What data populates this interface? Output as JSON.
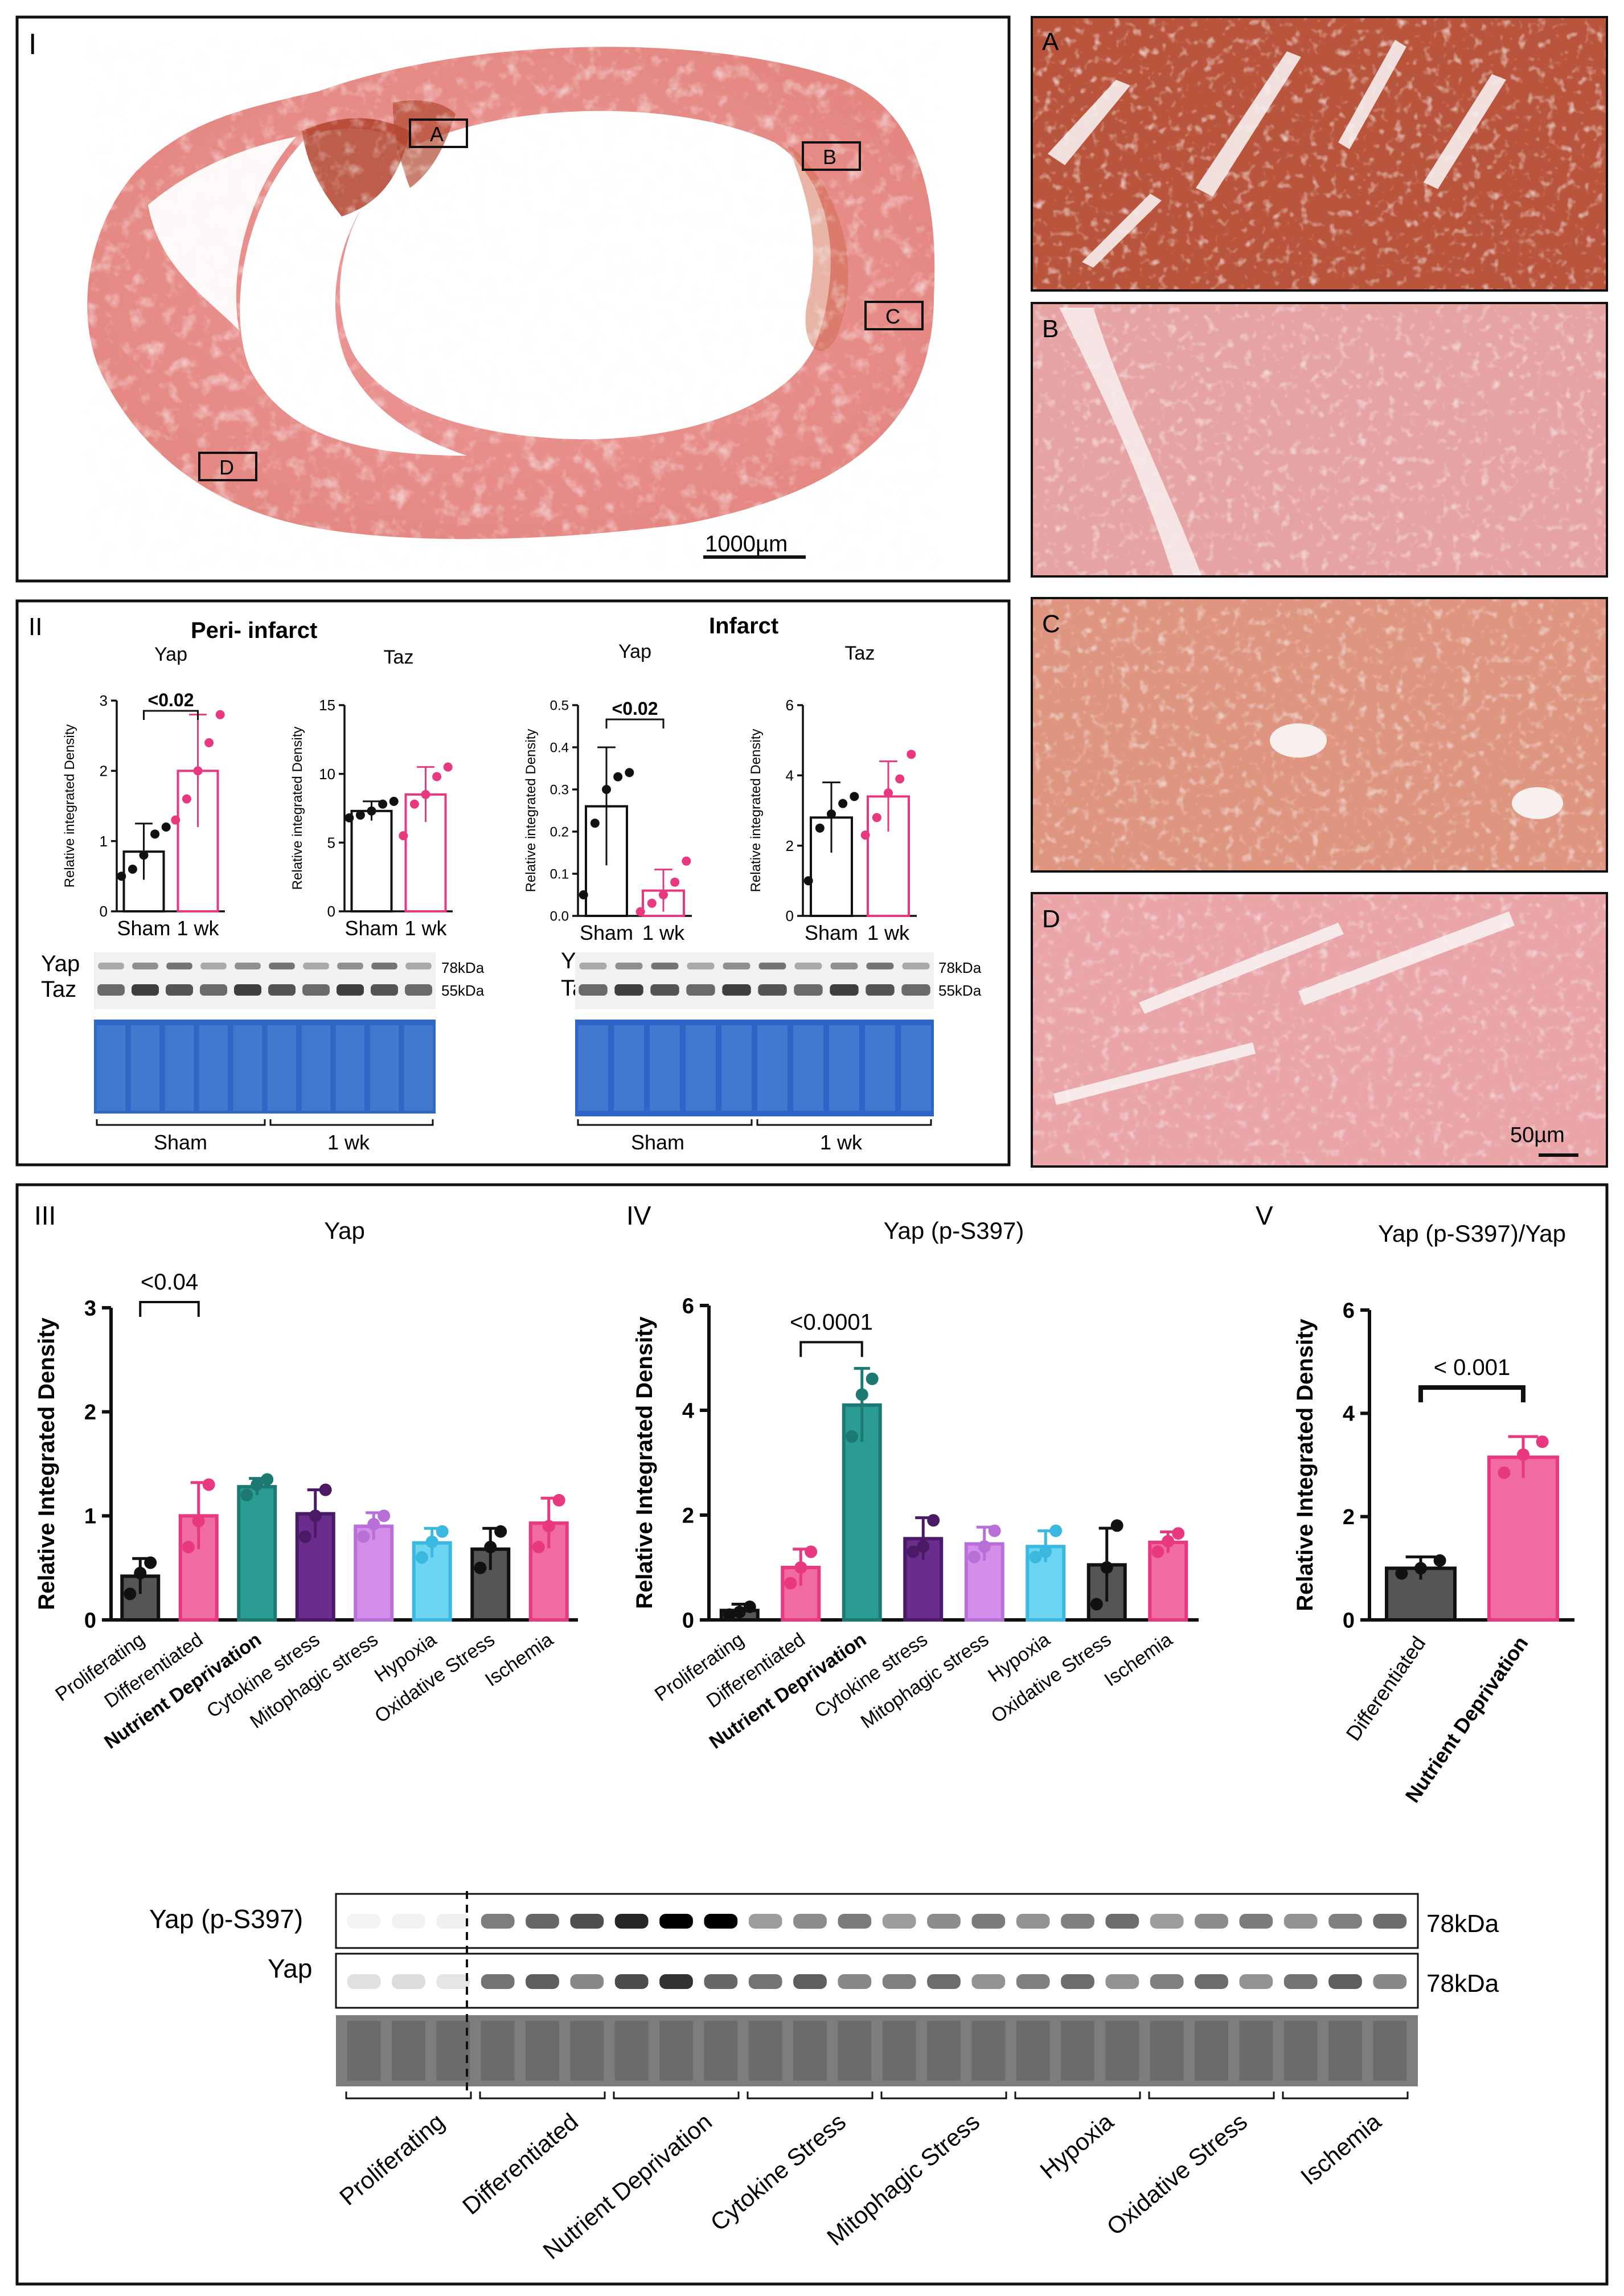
{
  "panel_I": {
    "label": "I",
    "scale_bar": "1000µm",
    "boxes": [
      "A",
      "B",
      "C",
      "D"
    ]
  },
  "micrographs": {
    "labels": [
      "A",
      "B",
      "C",
      "D"
    ],
    "scale_bar": "50µm"
  },
  "panel_II": {
    "label": "II",
    "peri_title": "Peri- infarct",
    "infarct_title": "Infarct",
    "blot_yap": "Yap",
    "blot_taz": "Taz",
    "kda_78": "78kDa",
    "kda_55": "55kDa",
    "group_sham": "Sham",
    "group_1wk": "1 wk"
  },
  "panel_III_label": "III",
  "panel_IV_label": "IV",
  "panel_V_label": "V",
  "blot_III": {
    "row1": "Yap (p-S397)",
    "row2": "Yap",
    "kda1": "78kDa",
    "kda2": "78kDa",
    "groups": [
      "Proliferating",
      "Differentiated",
      "Nutrient Deprivation",
      "Cytokine Stress",
      "Mitophagic Stress",
      "Hypoxia",
      "Oxidative Stress",
      "Ischemia"
    ],
    "p_intensities": [
      0.05,
      0.6,
      1.0,
      0.45,
      0.45,
      0.5,
      0.45,
      0.5
    ],
    "y_intensities": [
      0.12,
      0.55,
      0.7,
      0.55,
      0.5,
      0.5,
      0.5,
      0.55
    ]
  },
  "chart_data": [
    {
      "id": "IIa",
      "type": "bar",
      "panel": "II",
      "title": "Yap",
      "ylabel": "Relative integrated Density",
      "categories": [
        "Sham",
        "1 wk"
      ],
      "values": [
        0.85,
        2.0
      ],
      "errors": [
        0.4,
        0.8
      ],
      "ylim": [
        0,
        3
      ],
      "yticks": [
        "0",
        "1",
        "2",
        "3"
      ],
      "points": [
        [
          0.5,
          0.6,
          0.8,
          1.1,
          1.2
        ],
        [
          1.3,
          1.6,
          2.0,
          2.4,
          2.8
        ]
      ],
      "colors": [
        "#111111",
        "#e8387f"
      ],
      "sig": "<0.02"
    },
    {
      "id": "IIb",
      "type": "bar",
      "panel": "II",
      "title": "Taz",
      "ylabel": "Relative integrated Density",
      "categories": [
        "Sham",
        "1 wk"
      ],
      "values": [
        7.3,
        8.5
      ],
      "errors": [
        0.7,
        2.0
      ],
      "ylim": [
        0,
        15
      ],
      "yticks": [
        "0",
        "5",
        "10",
        "15"
      ],
      "points": [
        [
          6.8,
          7.0,
          7.3,
          7.8,
          8.0
        ],
        [
          5.5,
          7.8,
          8.5,
          9.8,
          10.5
        ]
      ],
      "colors": [
        "#111111",
        "#e8387f"
      ]
    },
    {
      "id": "IIc",
      "type": "bar",
      "panel": "II",
      "title": "Yap",
      "ylabel": "Relative integrated Density",
      "categories": [
        "Sham",
        "1 wk"
      ],
      "values": [
        0.26,
        0.06
      ],
      "errors": [
        0.14,
        0.05
      ],
      "ylim": [
        0,
        0.5
      ],
      "yticks": [
        "0.0",
        "0.1",
        "0.2",
        "0.3",
        "0.4",
        "0.5"
      ],
      "points": [
        [
          0.05,
          0.22,
          0.3,
          0.33,
          0.34
        ],
        [
          0.01,
          0.03,
          0.05,
          0.08,
          0.13
        ]
      ],
      "colors": [
        "#111111",
        "#e8387f"
      ],
      "sig": "<0.02"
    },
    {
      "id": "IId",
      "type": "bar",
      "panel": "II",
      "title": "Taz",
      "ylabel": "Relative integrated Density",
      "categories": [
        "Sham",
        "1 wk"
      ],
      "values": [
        2.8,
        3.4
      ],
      "errors": [
        1.0,
        1.0
      ],
      "ylim": [
        0,
        6
      ],
      "yticks": [
        "0",
        "2",
        "4",
        "6"
      ],
      "points": [
        [
          1.0,
          2.5,
          2.9,
          3.2,
          3.4
        ],
        [
          2.3,
          2.8,
          3.5,
          3.9,
          4.6
        ]
      ],
      "colors": [
        "#111111",
        "#e8387f"
      ]
    },
    {
      "id": "III",
      "type": "bar",
      "panel": "III",
      "title": "Yap",
      "ylabel": "Relative Integrated Density",
      "categories": [
        "Proliferating",
        "Differentiated",
        "Nutrient Deprivation",
        "Cytokine stress",
        "Mitophagic stress",
        "Hypoxia",
        "Oxidative Stress",
        "Ischemia"
      ],
      "values": [
        0.42,
        1.0,
        1.28,
        1.02,
        0.9,
        0.74,
        0.68,
        0.93
      ],
      "errors": [
        0.17,
        0.32,
        0.08,
        0.23,
        0.13,
        0.14,
        0.2,
        0.24
      ],
      "ylim": [
        0,
        3
      ],
      "yticks": [
        "0",
        "1",
        "2",
        "3"
      ],
      "points": [
        [
          0.25,
          0.45,
          0.55
        ],
        [
          0.7,
          0.95,
          1.3
        ],
        [
          1.2,
          1.3,
          1.35
        ],
        [
          0.8,
          1.0,
          1.25
        ],
        [
          0.8,
          0.92,
          1.0
        ],
        [
          0.6,
          0.75,
          0.85
        ],
        [
          0.5,
          0.7,
          0.85
        ],
        [
          0.7,
          0.9,
          1.15
        ]
      ],
      "colors": [
        "#555555",
        "#f06ba2",
        "#2b9c93",
        "#6a2d8c",
        "#d28ee8",
        "#6cd5f2",
        "#555555",
        "#f06ba2"
      ],
      "strokes": [
        "#111111",
        "#e8387f",
        "#1d7a72",
        "#4a1a66",
        "#b86fd6",
        "#3bb8df",
        "#111111",
        "#e8387f"
      ],
      "bold": [
        false,
        false,
        true,
        false,
        false,
        false,
        false,
        false
      ],
      "sig": "<0.04"
    },
    {
      "id": "IV",
      "type": "bar",
      "panel": "IV",
      "title": "Yap (p-S397)",
      "ylabel": "Relative Integrated Density",
      "categories": [
        "Proliferating",
        "Differentiated",
        "Nutrient Deprivation",
        "Cytokine stress",
        "Mitophagic stress",
        "Hypoxia",
        "Oxidative Stress",
        "Ischemia"
      ],
      "values": [
        0.18,
        1.0,
        4.1,
        1.55,
        1.45,
        1.4,
        1.05,
        1.48
      ],
      "errors": [
        0.12,
        0.35,
        0.7,
        0.4,
        0.32,
        0.3,
        0.7,
        0.2
      ],
      "ylim": [
        0,
        6
      ],
      "yticks": [
        "0",
        "2",
        "4",
        "6"
      ],
      "points": [
        [
          0.1,
          0.15,
          0.25
        ],
        [
          0.7,
          1.0,
          1.3
        ],
        [
          3.5,
          4.3,
          4.6
        ],
        [
          1.3,
          1.4,
          1.9
        ],
        [
          1.2,
          1.4,
          1.7
        ],
        [
          1.2,
          1.3,
          1.7
        ],
        [
          0.3,
          1.0,
          1.8
        ],
        [
          1.3,
          1.5,
          1.65
        ]
      ],
      "colors": [
        "#555555",
        "#f06ba2",
        "#2b9c93",
        "#6a2d8c",
        "#d28ee8",
        "#6cd5f2",
        "#555555",
        "#f06ba2"
      ],
      "strokes": [
        "#111111",
        "#e8387f",
        "#1d7a72",
        "#4a1a66",
        "#b86fd6",
        "#3bb8df",
        "#111111",
        "#e8387f"
      ],
      "bold": [
        false,
        false,
        true,
        false,
        false,
        false,
        false,
        false
      ],
      "sig": "<0.0001"
    },
    {
      "id": "V",
      "type": "bar",
      "panel": "V",
      "title": "Yap (p-S397)/Yap",
      "ylabel": "Relative Integrated Density",
      "categories": [
        "Differentiated",
        "Nutrient Deprivation"
      ],
      "values": [
        1.0,
        3.15
      ],
      "errors": [
        0.22,
        0.4
      ],
      "ylim": [
        0,
        6
      ],
      "yticks": [
        "0",
        "2",
        "4",
        "6"
      ],
      "points": [
        [
          0.9,
          1.0,
          1.15
        ],
        [
          2.85,
          3.2,
          3.45
        ]
      ],
      "colors": [
        "#555555",
        "#f06ba2"
      ],
      "strokes": [
        "#111111",
        "#e8387f"
      ],
      "bold": [
        false,
        true
      ],
      "sig": "< 0.001"
    }
  ]
}
